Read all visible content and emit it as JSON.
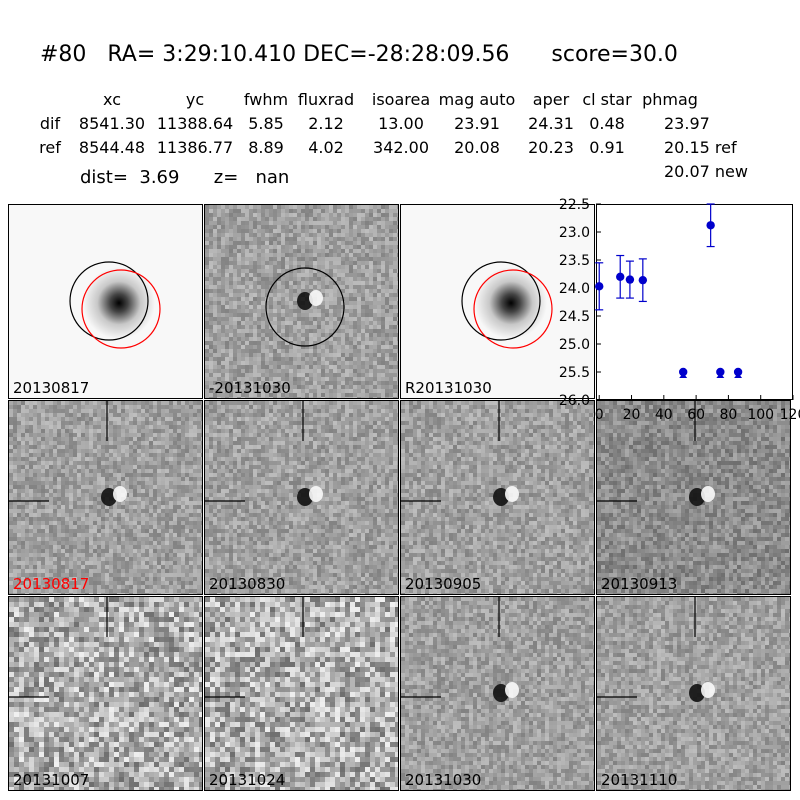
{
  "header": {
    "title": "#80   RA= 3:29:10.410 DEC=-28:28:09.56      score=30.0",
    "columns": [
      "xc",
      "yc",
      "fwhm",
      "fluxrad",
      "isoarea",
      "mag auto",
      "aper",
      "cl star",
      "phmag"
    ],
    "rows": [
      {
        "label": "dif",
        "values": [
          "8541.30",
          "11388.64",
          "5.85",
          "2.12",
          "13.00",
          "23.91",
          "24.31",
          "0.48",
          "23.97"
        ]
      },
      {
        "label": "ref",
        "values": [
          "8544.48",
          "11386.77",
          "8.89",
          "4.02",
          "342.00",
          "20.08",
          "20.23",
          "0.91",
          "20.15 ref"
        ]
      }
    ],
    "extra_phmag": "20.07 new",
    "dist_line": "dist=  3.69      z=   nan"
  },
  "panels": [
    {
      "label": "20130817",
      "label_color": "#000000",
      "kind": "ref_circles"
    },
    {
      "label": "-20131030",
      "label_color": "#000000",
      "kind": "dif_circle"
    },
    {
      "label": "R20131030",
      "label_color": "#000000",
      "kind": "ref_circles"
    },
    {
      "label": "20130817",
      "label_color": "#ff0000",
      "kind": "dif_cross"
    },
    {
      "label": "20130830",
      "label_color": "#000000",
      "kind": "dif_cross"
    },
    {
      "label": "20130905",
      "label_color": "#000000",
      "kind": "dif_cross"
    },
    {
      "label": "20130913",
      "label_color": "#000000",
      "kind": "dif_cross"
    },
    {
      "label": "20131007",
      "label_color": "#000000",
      "kind": "noise_cross"
    },
    {
      "label": "20131024",
      "label_color": "#000000",
      "kind": "noise_cross"
    },
    {
      "label": "20131030",
      "label_color": "#000000",
      "kind": "dif_cross"
    },
    {
      "label": "20131110",
      "label_color": "#000000",
      "kind": "dif_cross"
    }
  ],
  "chart_data": {
    "type": "scatter",
    "title": "",
    "xlabel": "",
    "ylabel": "",
    "xlim": [
      -2,
      120
    ],
    "ylim": [
      26.0,
      22.5
    ],
    "y_inverted": true,
    "x_ticks": [
      "0",
      "20",
      "40",
      "60",
      "80",
      "100",
      "120"
    ],
    "y_ticks": [
      "22.5",
      "23.0",
      "23.5",
      "24.0",
      "24.5",
      "25.0",
      "25.5",
      "26.0"
    ],
    "marker_color": "#0000cc",
    "points": [
      {
        "x": 0,
        "y": 23.97,
        "err": 0.42
      },
      {
        "x": 13,
        "y": 23.8,
        "err": 0.38
      },
      {
        "x": 19,
        "y": 23.85,
        "err": 0.33
      },
      {
        "x": 27,
        "y": 23.86,
        "err": 0.38
      },
      {
        "x": 52,
        "y": 25.5,
        "err": 0.0,
        "limit": true
      },
      {
        "x": 69,
        "y": 22.88,
        "err": 0.38
      },
      {
        "x": 75,
        "y": 25.5,
        "err": 0.0,
        "limit": true
      },
      {
        "x": 86,
        "y": 25.5,
        "err": 0.0,
        "limit": true
      }
    ]
  }
}
